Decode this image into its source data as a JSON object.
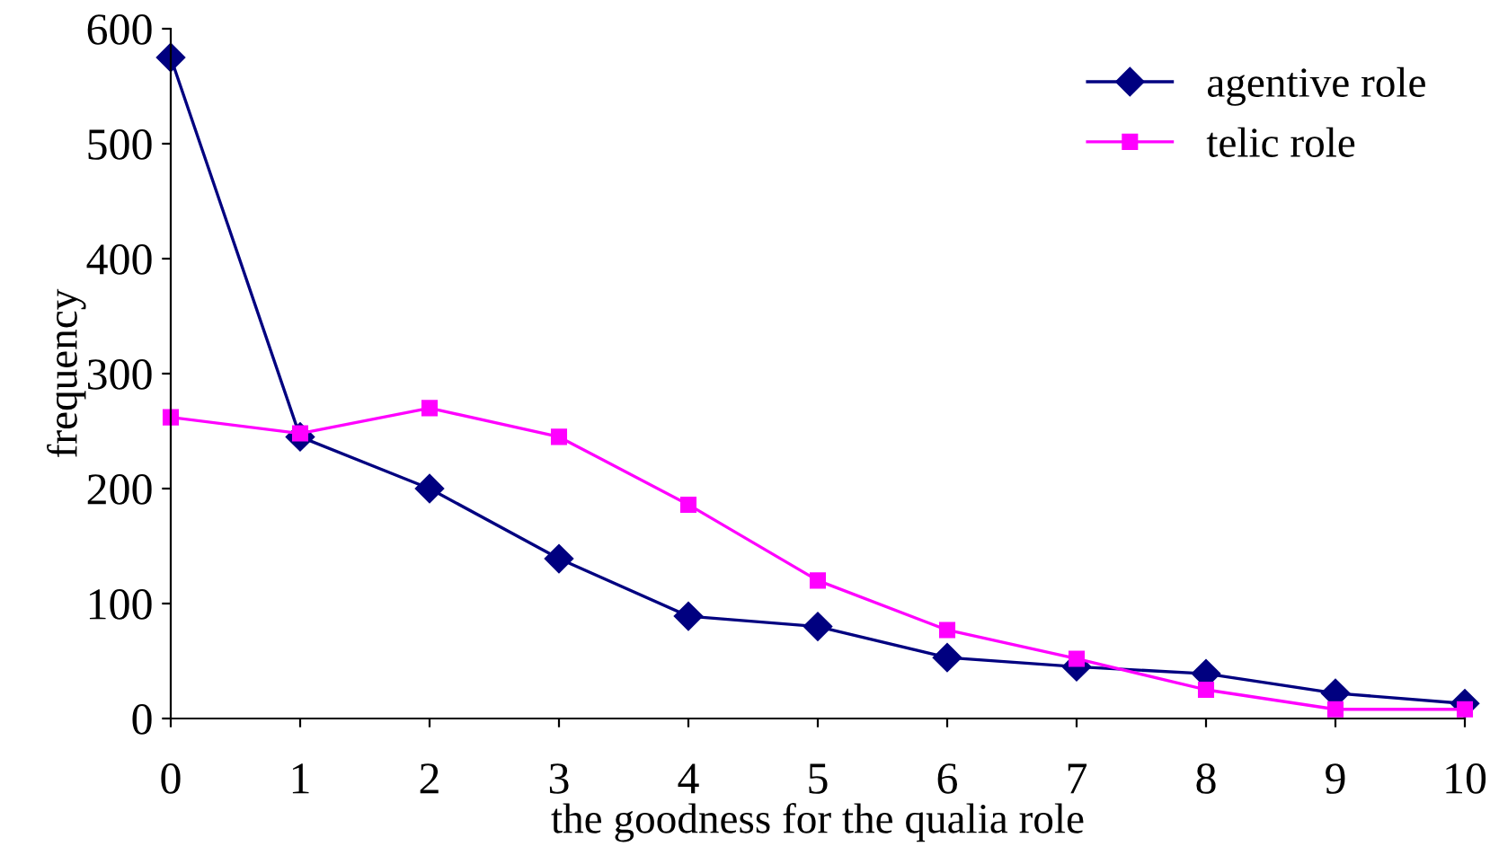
{
  "chart_data": {
    "type": "line",
    "xlabel": "the goodness for the qualia role",
    "ylabel": "frequency",
    "categories": [
      "0",
      "1",
      "2",
      "3",
      "4",
      "5",
      "6",
      "7",
      "8",
      "9",
      "10"
    ],
    "series": [
      {
        "name": "agentive role",
        "color": "#000080",
        "marker": "diamond",
        "values": [
          575,
          245,
          200,
          139,
          89,
          80,
          53,
          45,
          39,
          22,
          13
        ]
      },
      {
        "name": "telic role",
        "color": "#ff00ff",
        "marker": "square",
        "values": [
          262,
          248,
          270,
          245,
          186,
          120,
          77,
          52,
          25,
          8,
          8
        ]
      }
    ],
    "ylim": [
      0,
      600
    ],
    "yticks": [
      0,
      100,
      200,
      300,
      400,
      500,
      600
    ],
    "grid": false,
    "legend": "top right",
    "line_style": "solid"
  }
}
